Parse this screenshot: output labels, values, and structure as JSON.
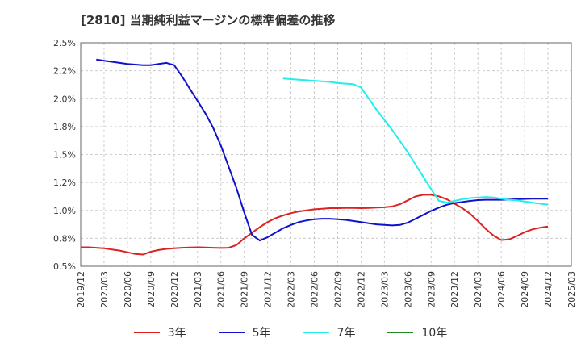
{
  "title": "[2810]  当期純利益マージンの標準偏差の推移",
  "chart_data": {
    "type": "line",
    "title": "[2810]  当期純利益マージンの標準偏差の推移",
    "xlabel": "",
    "ylabel": "",
    "ylim": [
      0.5,
      2.5
    ],
    "y_ticks": [
      "0.5%",
      "0.8%",
      "1.0%",
      "1.2%",
      "1.5%",
      "1.8%",
      "2.0%",
      "2.2%",
      "2.5%"
    ],
    "x_ticks": [
      "2019/12",
      "2020/03",
      "2020/06",
      "2020/09",
      "2020/12",
      "2021/03",
      "2021/06",
      "2021/09",
      "2021/12",
      "2022/03",
      "2022/06",
      "2022/09",
      "2022/12",
      "2023/03",
      "2023/06",
      "2023/09",
      "2023/12",
      "2024/03",
      "2024/06",
      "2024/09",
      "2024/12",
      "2025/03"
    ],
    "grid": true,
    "legend_position": "bottom",
    "series": [
      {
        "name": "3年",
        "color": "#dd2222",
        "points": [
          [
            "2019/12",
            0.67
          ],
          [
            "2020/01",
            0.67
          ],
          [
            "2020/02",
            0.665
          ],
          [
            "2020/03",
            0.66
          ],
          [
            "2020/04",
            0.65
          ],
          [
            "2020/05",
            0.64
          ],
          [
            "2020/06",
            0.625
          ],
          [
            "2020/07",
            0.61
          ],
          [
            "2020/08",
            0.605
          ],
          [
            "2020/09",
            0.63
          ],
          [
            "2020/10",
            0.645
          ],
          [
            "2020/11",
            0.655
          ],
          [
            "2020/12",
            0.66
          ],
          [
            "2021/01",
            0.665
          ],
          [
            "2021/02",
            0.668
          ],
          [
            "2021/03",
            0.67
          ],
          [
            "2021/04",
            0.668
          ],
          [
            "2021/05",
            0.665
          ],
          [
            "2021/06",
            0.663
          ],
          [
            "2021/07",
            0.665
          ],
          [
            "2021/08",
            0.69
          ],
          [
            "2021/09",
            0.75
          ],
          [
            "2021/10",
            0.8
          ],
          [
            "2021/11",
            0.85
          ],
          [
            "2021/12",
            0.895
          ],
          [
            "2022/01",
            0.93
          ],
          [
            "2022/02",
            0.955
          ],
          [
            "2022/03",
            0.975
          ],
          [
            "2022/04",
            0.99
          ],
          [
            "2022/05",
            1.0
          ],
          [
            "2022/06",
            1.01
          ],
          [
            "2022/07",
            1.015
          ],
          [
            "2022/08",
            1.02
          ],
          [
            "2022/09",
            1.02
          ],
          [
            "2022/10",
            1.022
          ],
          [
            "2022/11",
            1.022
          ],
          [
            "2022/12",
            1.02
          ],
          [
            "2023/01",
            1.022
          ],
          [
            "2023/02",
            1.025
          ],
          [
            "2023/03",
            1.028
          ],
          [
            "2023/04",
            1.035
          ],
          [
            "2023/05",
            1.055
          ],
          [
            "2023/06",
            1.09
          ],
          [
            "2023/07",
            1.125
          ],
          [
            "2023/08",
            1.14
          ],
          [
            "2023/09",
            1.14
          ],
          [
            "2023/10",
            1.125
          ],
          [
            "2023/11",
            1.1
          ],
          [
            "2023/12",
            1.06
          ],
          [
            "2024/01",
            1.02
          ],
          [
            "2024/02",
            0.97
          ],
          [
            "2024/03",
            0.905
          ],
          [
            "2024/04",
            0.835
          ],
          [
            "2024/05",
            0.775
          ],
          [
            "2024/06",
            0.735
          ],
          [
            "2024/07",
            0.74
          ],
          [
            "2024/08",
            0.77
          ],
          [
            "2024/09",
            0.805
          ],
          [
            "2024/10",
            0.83
          ],
          [
            "2024/11",
            0.845
          ],
          [
            "2024/12",
            0.855
          ]
        ]
      },
      {
        "name": "5年",
        "color": "#1111cc",
        "points": [
          [
            "2020/02",
            2.35
          ],
          [
            "2020/03",
            2.34
          ],
          [
            "2020/04",
            2.33
          ],
          [
            "2020/05",
            2.32
          ],
          [
            "2020/06",
            2.31
          ],
          [
            "2020/07",
            2.305
          ],
          [
            "2020/08",
            2.3
          ],
          [
            "2020/09",
            2.3
          ],
          [
            "2020/10",
            2.31
          ],
          [
            "2020/11",
            2.32
          ],
          [
            "2020/12",
            2.3
          ],
          [
            "2021/01",
            2.2
          ],
          [
            "2021/02",
            2.09
          ],
          [
            "2021/03",
            1.98
          ],
          [
            "2021/04",
            1.87
          ],
          [
            "2021/05",
            1.74
          ],
          [
            "2021/06",
            1.58
          ],
          [
            "2021/07",
            1.39
          ],
          [
            "2021/08",
            1.2
          ],
          [
            "2021/09",
            0.98
          ],
          [
            "2021/10",
            0.78
          ],
          [
            "2021/11",
            0.73
          ],
          [
            "2021/12",
            0.76
          ],
          [
            "2022/01",
            0.8
          ],
          [
            "2022/02",
            0.84
          ],
          [
            "2022/03",
            0.87
          ],
          [
            "2022/04",
            0.895
          ],
          [
            "2022/05",
            0.91
          ],
          [
            "2022/06",
            0.92
          ],
          [
            "2022/07",
            0.925
          ],
          [
            "2022/08",
            0.925
          ],
          [
            "2022/09",
            0.92
          ],
          [
            "2022/10",
            0.915
          ],
          [
            "2022/11",
            0.905
          ],
          [
            "2022/12",
            0.895
          ],
          [
            "2023/01",
            0.885
          ],
          [
            "2023/02",
            0.875
          ],
          [
            "2023/03",
            0.87
          ],
          [
            "2023/04",
            0.865
          ],
          [
            "2023/05",
            0.87
          ],
          [
            "2023/06",
            0.89
          ],
          [
            "2023/07",
            0.925
          ],
          [
            "2023/08",
            0.96
          ],
          [
            "2023/09",
            0.995
          ],
          [
            "2023/10",
            1.025
          ],
          [
            "2023/11",
            1.05
          ],
          [
            "2023/12",
            1.065
          ],
          [
            "2024/01",
            1.075
          ],
          [
            "2024/02",
            1.085
          ],
          [
            "2024/03",
            1.092
          ],
          [
            "2024/04",
            1.095
          ],
          [
            "2024/05",
            1.095
          ],
          [
            "2024/06",
            1.095
          ],
          [
            "2024/07",
            1.097
          ],
          [
            "2024/08",
            1.1
          ],
          [
            "2024/09",
            1.103
          ],
          [
            "2024/10",
            1.105
          ],
          [
            "2024/11",
            1.105
          ],
          [
            "2024/12",
            1.105
          ]
        ]
      },
      {
        "name": "7年",
        "color": "#22eeee",
        "points": [
          [
            "2022/02",
            2.18
          ],
          [
            "2022/03",
            2.175
          ],
          [
            "2022/04",
            2.17
          ],
          [
            "2022/05",
            2.165
          ],
          [
            "2022/06",
            2.16
          ],
          [
            "2022/07",
            2.155
          ],
          [
            "2022/08",
            2.15
          ],
          [
            "2022/09",
            2.14
          ],
          [
            "2022/10",
            2.135
          ],
          [
            "2022/11",
            2.13
          ],
          [
            "2022/12",
            2.1
          ],
          [
            "2023/01",
            2.0
          ],
          [
            "2023/02",
            1.9
          ],
          [
            "2023/03",
            1.81
          ],
          [
            "2023/04",
            1.72
          ],
          [
            "2023/05",
            1.62
          ],
          [
            "2023/06",
            1.52
          ],
          [
            "2023/07",
            1.41
          ],
          [
            "2023/08",
            1.3
          ],
          [
            "2023/09",
            1.19
          ],
          [
            "2023/10",
            1.085
          ],
          [
            "2023/11",
            1.07
          ],
          [
            "2023/12",
            1.085
          ],
          [
            "2024/01",
            1.1
          ],
          [
            "2024/02",
            1.11
          ],
          [
            "2024/03",
            1.115
          ],
          [
            "2024/04",
            1.12
          ],
          [
            "2024/05",
            1.115
          ],
          [
            "2024/06",
            1.105
          ],
          [
            "2024/07",
            1.095
          ],
          [
            "2024/08",
            1.09
          ],
          [
            "2024/09",
            1.08
          ],
          [
            "2024/10",
            1.07
          ],
          [
            "2024/11",
            1.06
          ],
          [
            "2024/12",
            1.05
          ]
        ]
      },
      {
        "name": "10年",
        "color": "#228822",
        "points": []
      }
    ]
  }
}
